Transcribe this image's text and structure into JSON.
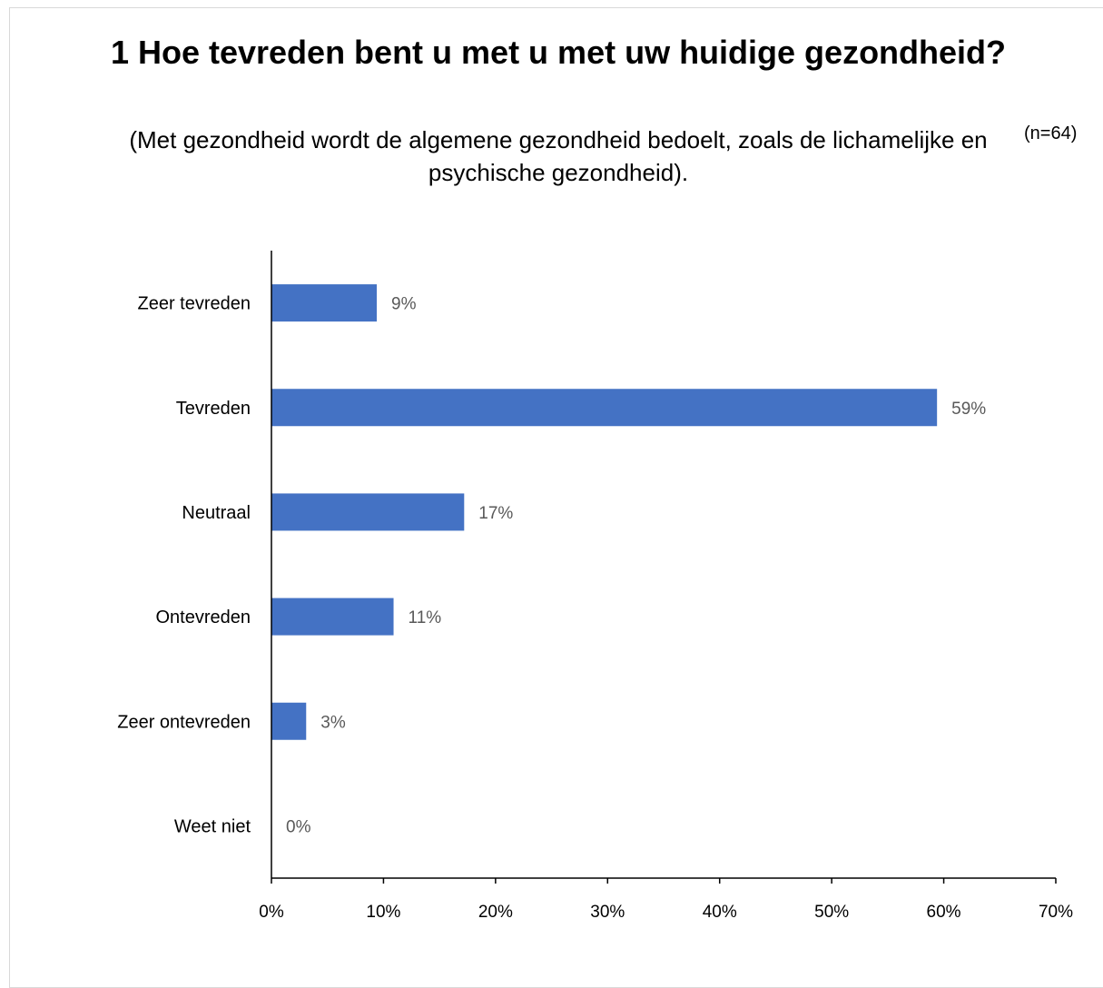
{
  "chart_data": {
    "type": "bar",
    "orientation": "horizontal",
    "title": "1 Hoe tevreden bent u met u met uw huidige gezondheid?",
    "subtitle": "(Met gezondheid wordt de algemene gezondheid bedoelt, zoals de lichamelijke en psychische gezondheid).",
    "note": "(n=64)",
    "categories": [
      "Zeer tevreden",
      "Tevreden",
      "Neutraal",
      "Ontevreden",
      "Zeer ontevreden",
      "Weet niet"
    ],
    "values": [
      9.4,
      59.4,
      17.2,
      10.9,
      3.1,
      0
    ],
    "value_labels": [
      "9%",
      "59%",
      "17%",
      "11%",
      "3%",
      "0%"
    ],
    "xlim": [
      0,
      70
    ],
    "x_ticks": [
      0,
      10,
      20,
      30,
      40,
      50,
      60,
      70
    ],
    "x_tick_labels": [
      "0%",
      "10%",
      "20%",
      "30%",
      "40%",
      "50%",
      "60%",
      "70%"
    ],
    "xlabel": "",
    "ylabel": "",
    "grid": false,
    "legend": "none",
    "bar_color": "#4472c4"
  }
}
